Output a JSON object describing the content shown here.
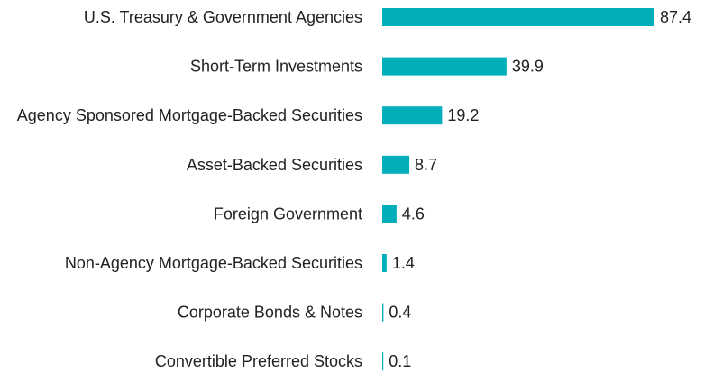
{
  "chart_data": {
    "type": "bar",
    "orientation": "horizontal",
    "title": "",
    "xlabel": "",
    "ylabel": "",
    "grid": false,
    "legend": "none",
    "bar_color": "#00AFB9",
    "xlim": [
      0,
      87.4
    ],
    "categories": [
      "U.S. Treasury & Government Agencies",
      "Short-Term Investments",
      "Agency Sponsored Mortgage-Backed Securities",
      "Asset-Backed Securities",
      "Foreign Government",
      "Non-Agency Mortgage-Backed Securities",
      "Corporate Bonds & Notes",
      "Convertible Preferred Stocks"
    ],
    "values": [
      87.4,
      39.9,
      19.2,
      8.7,
      4.6,
      1.4,
      0.4,
      0.1
    ],
    "value_labels": [
      "87.4",
      "39.9",
      "19.2",
      "8.7",
      "4.6",
      "1.4",
      "0.4",
      "0.1"
    ]
  }
}
